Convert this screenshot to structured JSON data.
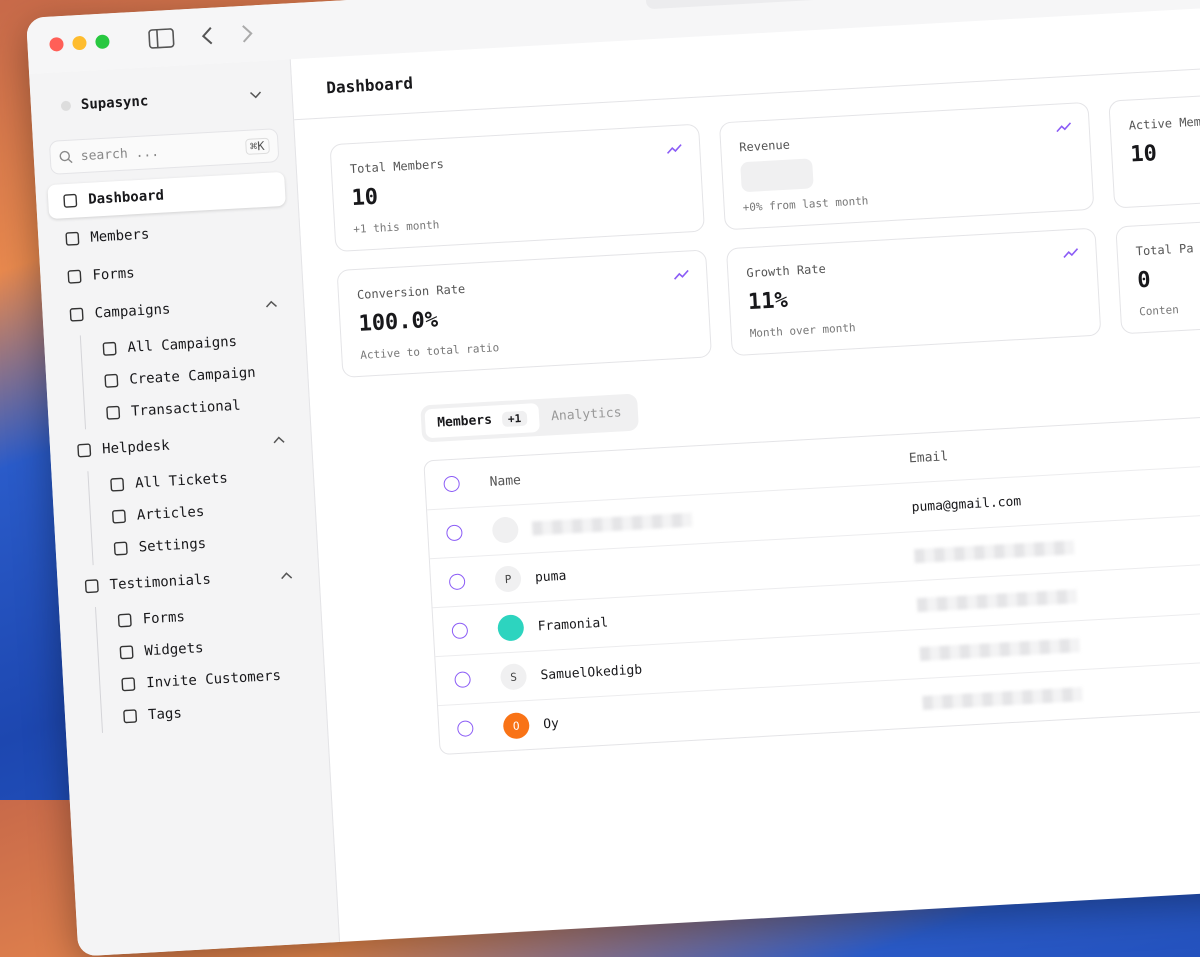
{
  "window": {
    "app_name": "Supasync",
    "search_placeholder": "search ...",
    "shortcut": "⌘K"
  },
  "sidebar": {
    "items": [
      "Dashboard",
      "Members",
      "Forms"
    ],
    "groups": [
      {
        "label": "Campaigns",
        "items": [
          "All Campaigns",
          "Create Campaign",
          "Transactional"
        ]
      },
      {
        "label": "Helpdesk",
        "items": [
          "All Tickets",
          "Articles",
          "Settings"
        ]
      },
      {
        "label": "Testimonials",
        "items": [
          "Forms",
          "Widgets",
          "Invite Customers",
          "Tags"
        ]
      }
    ]
  },
  "header": {
    "title": "Dashboard"
  },
  "stats": [
    {
      "label": "Total Members",
      "value": "10",
      "note": "+1 this month"
    },
    {
      "label": "Revenue",
      "note": "+0% from last month"
    },
    {
      "label": "Active Members",
      "value": "10"
    },
    {
      "label": "Conversion Rate",
      "value": "100.0%",
      "note": "Active to total ratio"
    },
    {
      "label": "Growth Rate",
      "value": "11%",
      "note": "Month over month"
    },
    {
      "label": "Total Pa",
      "value": "0",
      "note": "Conten"
    }
  ],
  "tabs": [
    {
      "label": "Members",
      "badge": "+1"
    },
    {
      "label": "Analytics"
    }
  ],
  "table": {
    "columns": [
      "Name",
      "Email"
    ],
    "rows": [
      {
        "email": "puma@gmail.com"
      },
      {
        "initial": "P",
        "name": "puma"
      },
      {
        "name": "Framonial"
      },
      {
        "initial": "S",
        "name": "SamuelOkedigb"
      },
      {
        "initial": "O",
        "name": "Oy"
      }
    ]
  }
}
